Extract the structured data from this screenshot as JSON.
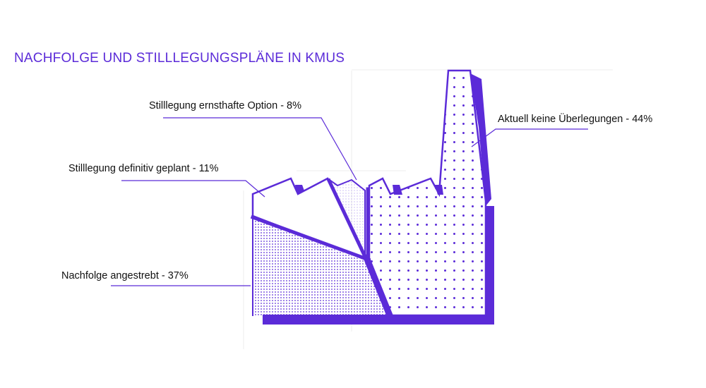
{
  "title": "NACHFOLGE UND STILLLEGUNGSPLÄNE IN KMUS",
  "accent_color": "#5b2bd8",
  "chart_data": {
    "type": "pie",
    "title": "NACHFOLGE UND STILLLEGUNGSPLÄNE IN KMUS",
    "slices": [
      {
        "key": "keine",
        "value": 44,
        "label": "Aktuell keine Überlegungen - 44%"
      },
      {
        "key": "nachfolge",
        "value": 37,
        "label": "Nachfolge angestrebt  - 37%"
      },
      {
        "key": "definitiv",
        "value": 11,
        "label": "Stilllegung definitiv geplant - 11%"
      },
      {
        "key": "ernsthaft",
        "value": 8,
        "label": "Stilllegung ernsthafte Option - 8%"
      }
    ]
  }
}
